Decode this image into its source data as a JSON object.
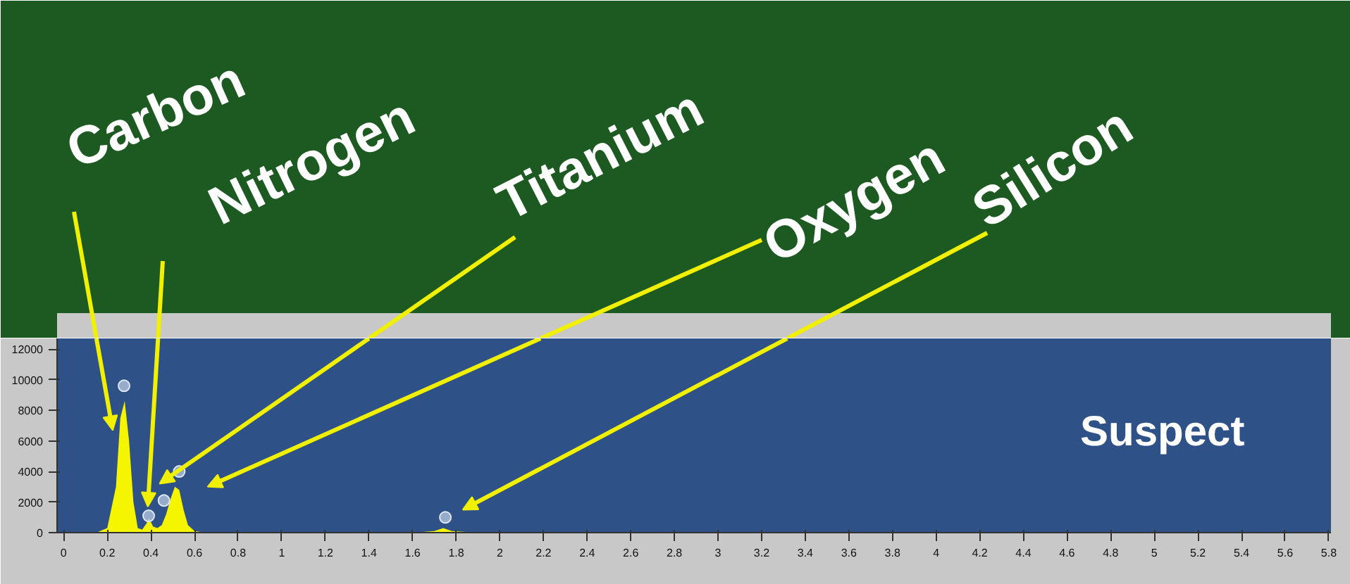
{
  "chart_data": {
    "type": "area",
    "xlim": [
      -0.03,
      5.81
    ],
    "ylim": [
      0,
      12700
    ],
    "xticks": [
      0,
      0.2,
      0.4,
      0.6,
      0.8,
      1,
      1.2,
      1.4,
      1.6,
      1.8,
      2,
      2.2,
      2.4,
      2.6,
      2.8,
      3,
      3.2,
      3.4,
      3.6,
      3.8,
      4,
      4.2,
      4.4,
      4.6,
      4.8,
      5,
      5.2,
      5.4,
      5.6,
      5.8
    ],
    "yticks": [
      0,
      2000,
      4000,
      6000,
      8000,
      10000,
      12000
    ],
    "grid": false,
    "series": [
      {
        "color": "#f5f500",
        "x": [
          0,
          0.15,
          0.2,
          0.24,
          0.26,
          0.28,
          0.3,
          0.32,
          0.34,
          0.36,
          0.38,
          0.39,
          0.41,
          0.43,
          0.45,
          0.47,
          0.49,
          0.51,
          0.53,
          0.55,
          0.57,
          0.6,
          0.65,
          1.0,
          1.6,
          1.7,
          1.74,
          1.78,
          1.9,
          3,
          5.8
        ],
        "values": [
          0,
          0,
          300,
          3000,
          7500,
          8600,
          6000,
          2000,
          300,
          200,
          600,
          1000,
          400,
          300,
          500,
          1200,
          2200,
          3000,
          2800,
          1500,
          500,
          100,
          0,
          0,
          0,
          100,
          300,
          100,
          0,
          0,
          0
        ]
      },
      {
        "type": "scatter",
        "color": "#a8bcd8",
        "marker": "circle",
        "x": [
          0.277,
          0.39,
          0.46,
          0.53,
          1.75
        ],
        "values": [
          9600,
          1100,
          2100,
          4000,
          1000
        ]
      }
    ],
    "annotations": [
      "Carbon",
      "Nitrogen",
      "Titanium",
      "Oxygen",
      "Silicon",
      "Suspect"
    ]
  }
}
